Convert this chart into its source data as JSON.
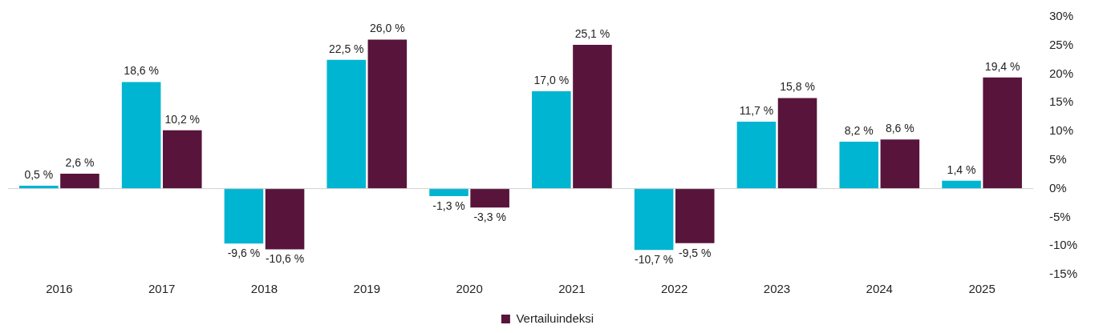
{
  "chart_data": {
    "type": "bar",
    "categories": [
      "2016",
      "2017",
      "2018",
      "2019",
      "2020",
      "2021",
      "2022",
      "2023",
      "2024",
      "2025"
    ],
    "series": [
      {
        "color": "#00b5d1",
        "values": [
          0.5,
          18.6,
          -9.6,
          22.5,
          -1.3,
          17.0,
          -10.7,
          11.7,
          8.2,
          1.4
        ],
        "value_labels": [
          "0,5 %",
          "18,6 %",
          "-9,6 %",
          "22,5 %",
          "-1,3 %",
          "17,0 %",
          "-10,7 %",
          "11,7 %",
          "8,2 %",
          "1,4 %"
        ]
      },
      {
        "name": "Vertailuindeksi",
        "color": "#58143a",
        "values": [
          2.6,
          10.2,
          -10.6,
          26.0,
          -3.3,
          25.1,
          -9.5,
          15.8,
          8.6,
          19.4
        ],
        "value_labels": [
          "2,6 %",
          "10,2 %",
          "-10,6 %",
          "26,0 %",
          "-3,3 %",
          "25,1 %",
          "-9,5 %",
          "15,8 %",
          "8,6 %",
          "19,4 %"
        ]
      }
    ],
    "ylim": [
      -15,
      30
    ],
    "yticks": [
      {
        "value": -15,
        "label": "-15%"
      },
      {
        "value": -10,
        "label": "-10%"
      },
      {
        "value": -5,
        "label": "-5%"
      },
      {
        "value": 0,
        "label": "0%"
      },
      {
        "value": 5,
        "label": "5%"
      },
      {
        "value": 10,
        "label": "10%"
      },
      {
        "value": 15,
        "label": "15%"
      },
      {
        "value": 20,
        "label": "20%"
      },
      {
        "value": 25,
        "label": "25%"
      },
      {
        "value": 30,
        "label": "30%"
      }
    ],
    "ref_lines": [
      {
        "axis": "y",
        "value": 0,
        "color": "#d0d0d0"
      }
    ],
    "grid": false,
    "legend": "bottom"
  }
}
